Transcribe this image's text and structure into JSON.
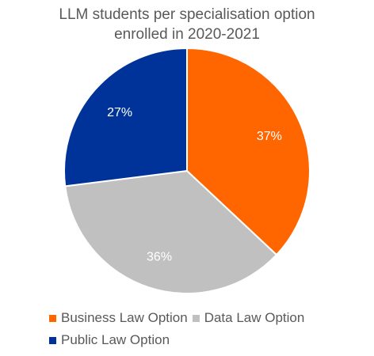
{
  "chart_data": {
    "type": "pie",
    "title": "LLM students per specialisation option enrolled in 2020-2021",
    "title_lines": [
      "LLM students per specialisation option",
      "enrolled in 2020-2021"
    ],
    "slices": [
      {
        "label": "Business Law Option",
        "value": 37,
        "value_label": "37%",
        "color": "#FF6600"
      },
      {
        "label": "Data Law Option",
        "value": 36,
        "value_label": "36%",
        "color": "#C0C0C0"
      },
      {
        "label": "Public Law Option",
        "value": 27,
        "value_label": "27%",
        "color": "#003399"
      }
    ],
    "legend_position": "bottom-left",
    "start_angle_deg": 0,
    "direction": "clockwise"
  }
}
